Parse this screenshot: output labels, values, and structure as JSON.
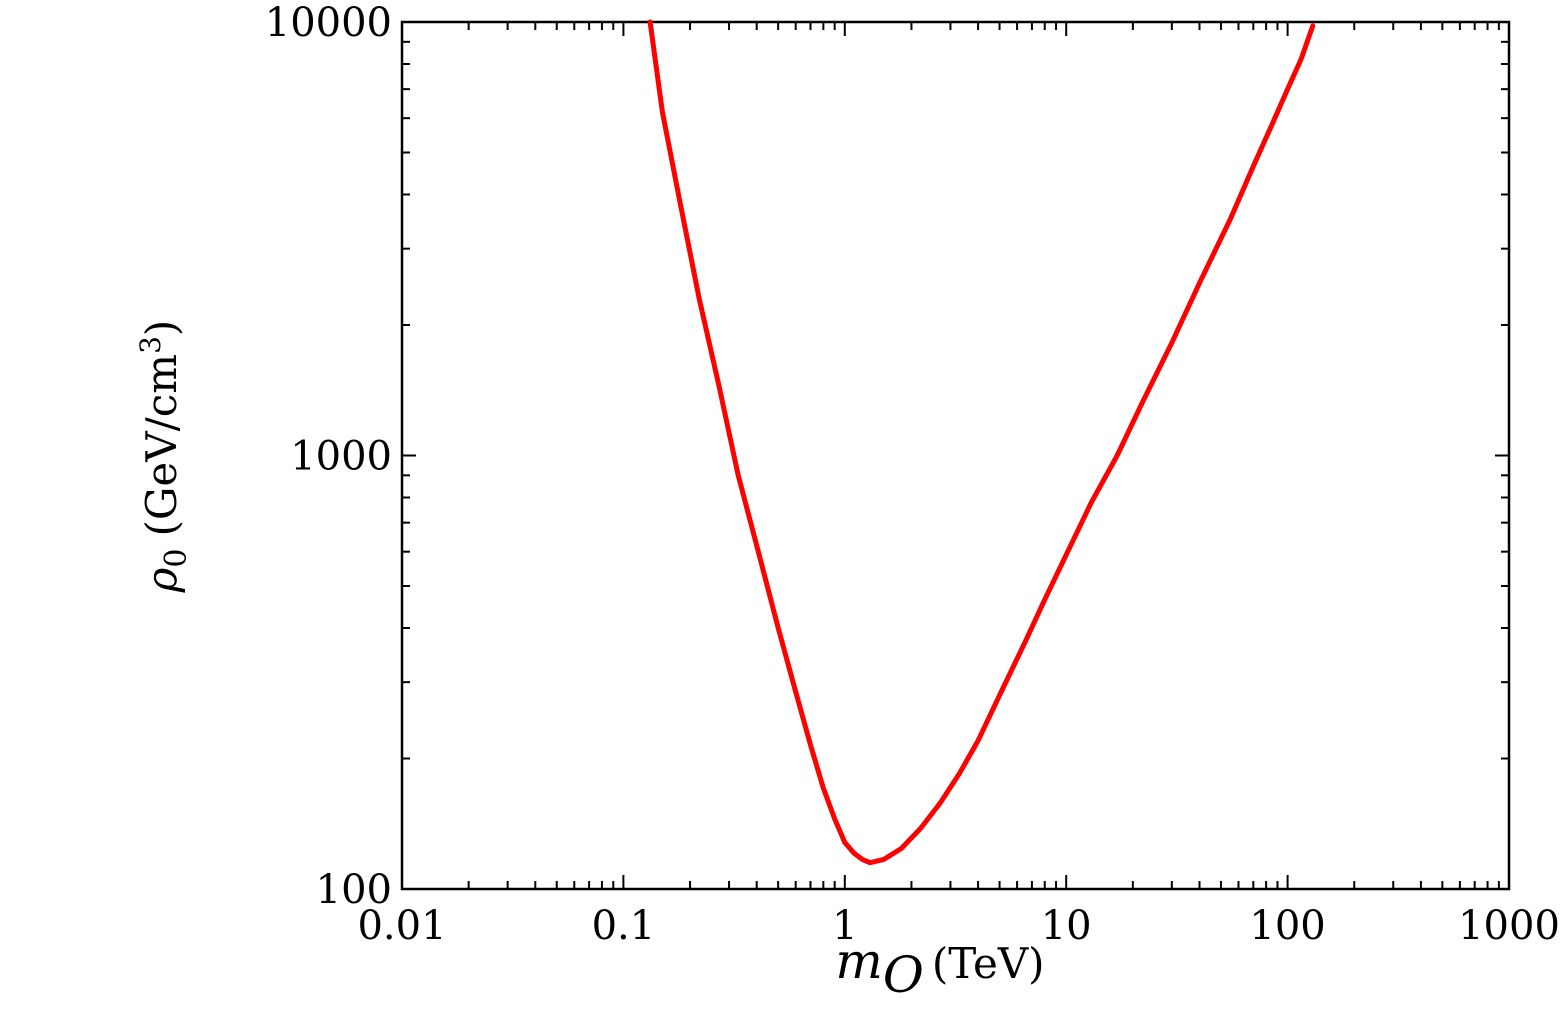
{
  "chart_data": {
    "type": "line",
    "x_scale": "log",
    "y_scale": "log",
    "xlim": [
      0.01,
      1000
    ],
    "ylim": [
      100,
      10000
    ],
    "grid": false,
    "xlabel": {
      "symbol": "m",
      "subscript": "O",
      "unit": "(TeV)"
    },
    "ylabel": {
      "symbol": "ρ",
      "subscript": "0",
      "unit_before": "(GeV/cm",
      "unit_sup": "3",
      "unit_after": ")"
    },
    "x_ticks": [
      0.01,
      0.1,
      1,
      10,
      100,
      1000
    ],
    "x_tick_labels": [
      "0.01",
      "0.1",
      "1",
      "10",
      "100",
      "1000"
    ],
    "y_ticks": [
      100,
      1000,
      10000
    ],
    "y_tick_labels": [
      "100",
      "1000",
      "10000"
    ],
    "series": [
      {
        "color": "#ff0000",
        "x": [
          0.132,
          0.15,
          0.18,
          0.22,
          0.27,
          0.33,
          0.4,
          0.5,
          0.6,
          0.7,
          0.8,
          0.9,
          1.0,
          1.1,
          1.2,
          1.3,
          1.5,
          1.8,
          2.2,
          2.7,
          3.3,
          4.0,
          5.0,
          6.5,
          8.0,
          10,
          13,
          17,
          22,
          30,
          40,
          55,
          70,
          85,
          100,
          115,
          130
        ],
        "y": [
          10000,
          6200,
          3850,
          2300,
          1450,
          900,
          620,
          400,
          285,
          215,
          171,
          145,
          128,
          121,
          117,
          115,
          117,
          124,
          138,
          158,
          185,
          220,
          280,
          370,
          465,
          590,
          780,
          1000,
          1320,
          1820,
          2500,
          3500,
          4650,
          5800,
          7000,
          8200,
          9800
        ]
      }
    ]
  }
}
